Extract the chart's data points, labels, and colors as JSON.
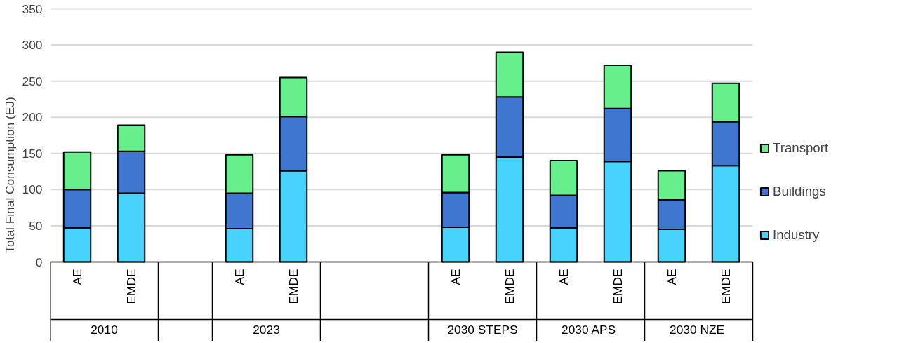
{
  "chart_data": {
    "type": "bar",
    "stacked": true,
    "ylabel": "Total Final Consumption (EJ)",
    "categories": [
      "AE",
      "EMDE",
      null,
      "AE",
      "EMDE",
      null,
      null,
      "AE",
      "EMDE",
      "AE",
      "EMDE",
      "AE",
      "EMDE"
    ],
    "annotations": [
      "2010",
      "2023",
      "2030 STEPS",
      "2030  APS",
      "2030  NZE"
    ],
    "series": [
      {
        "name": "Industry",
        "color": "#47d3fd",
        "values": [
          47,
          95,
          null,
          46,
          126,
          null,
          null,
          48,
          145,
          47,
          139,
          45,
          133
        ]
      },
      {
        "name": "Buildings",
        "color": "#3f76d0",
        "values": [
          53,
          58,
          null,
          49,
          75,
          null,
          null,
          48,
          83,
          45,
          73,
          41,
          61
        ]
      },
      {
        "name": "Transport",
        "color": "#66ef8a",
        "values": [
          52,
          36,
          null,
          53,
          54,
          null,
          null,
          52,
          62,
          48,
          60,
          40,
          53
        ]
      }
    ],
    "ylim": [
      0,
      350
    ],
    "yticks": [
      0,
      50,
      100,
      150,
      200,
      250,
      300,
      350
    ],
    "grid": "y",
    "legend": "right"
  }
}
